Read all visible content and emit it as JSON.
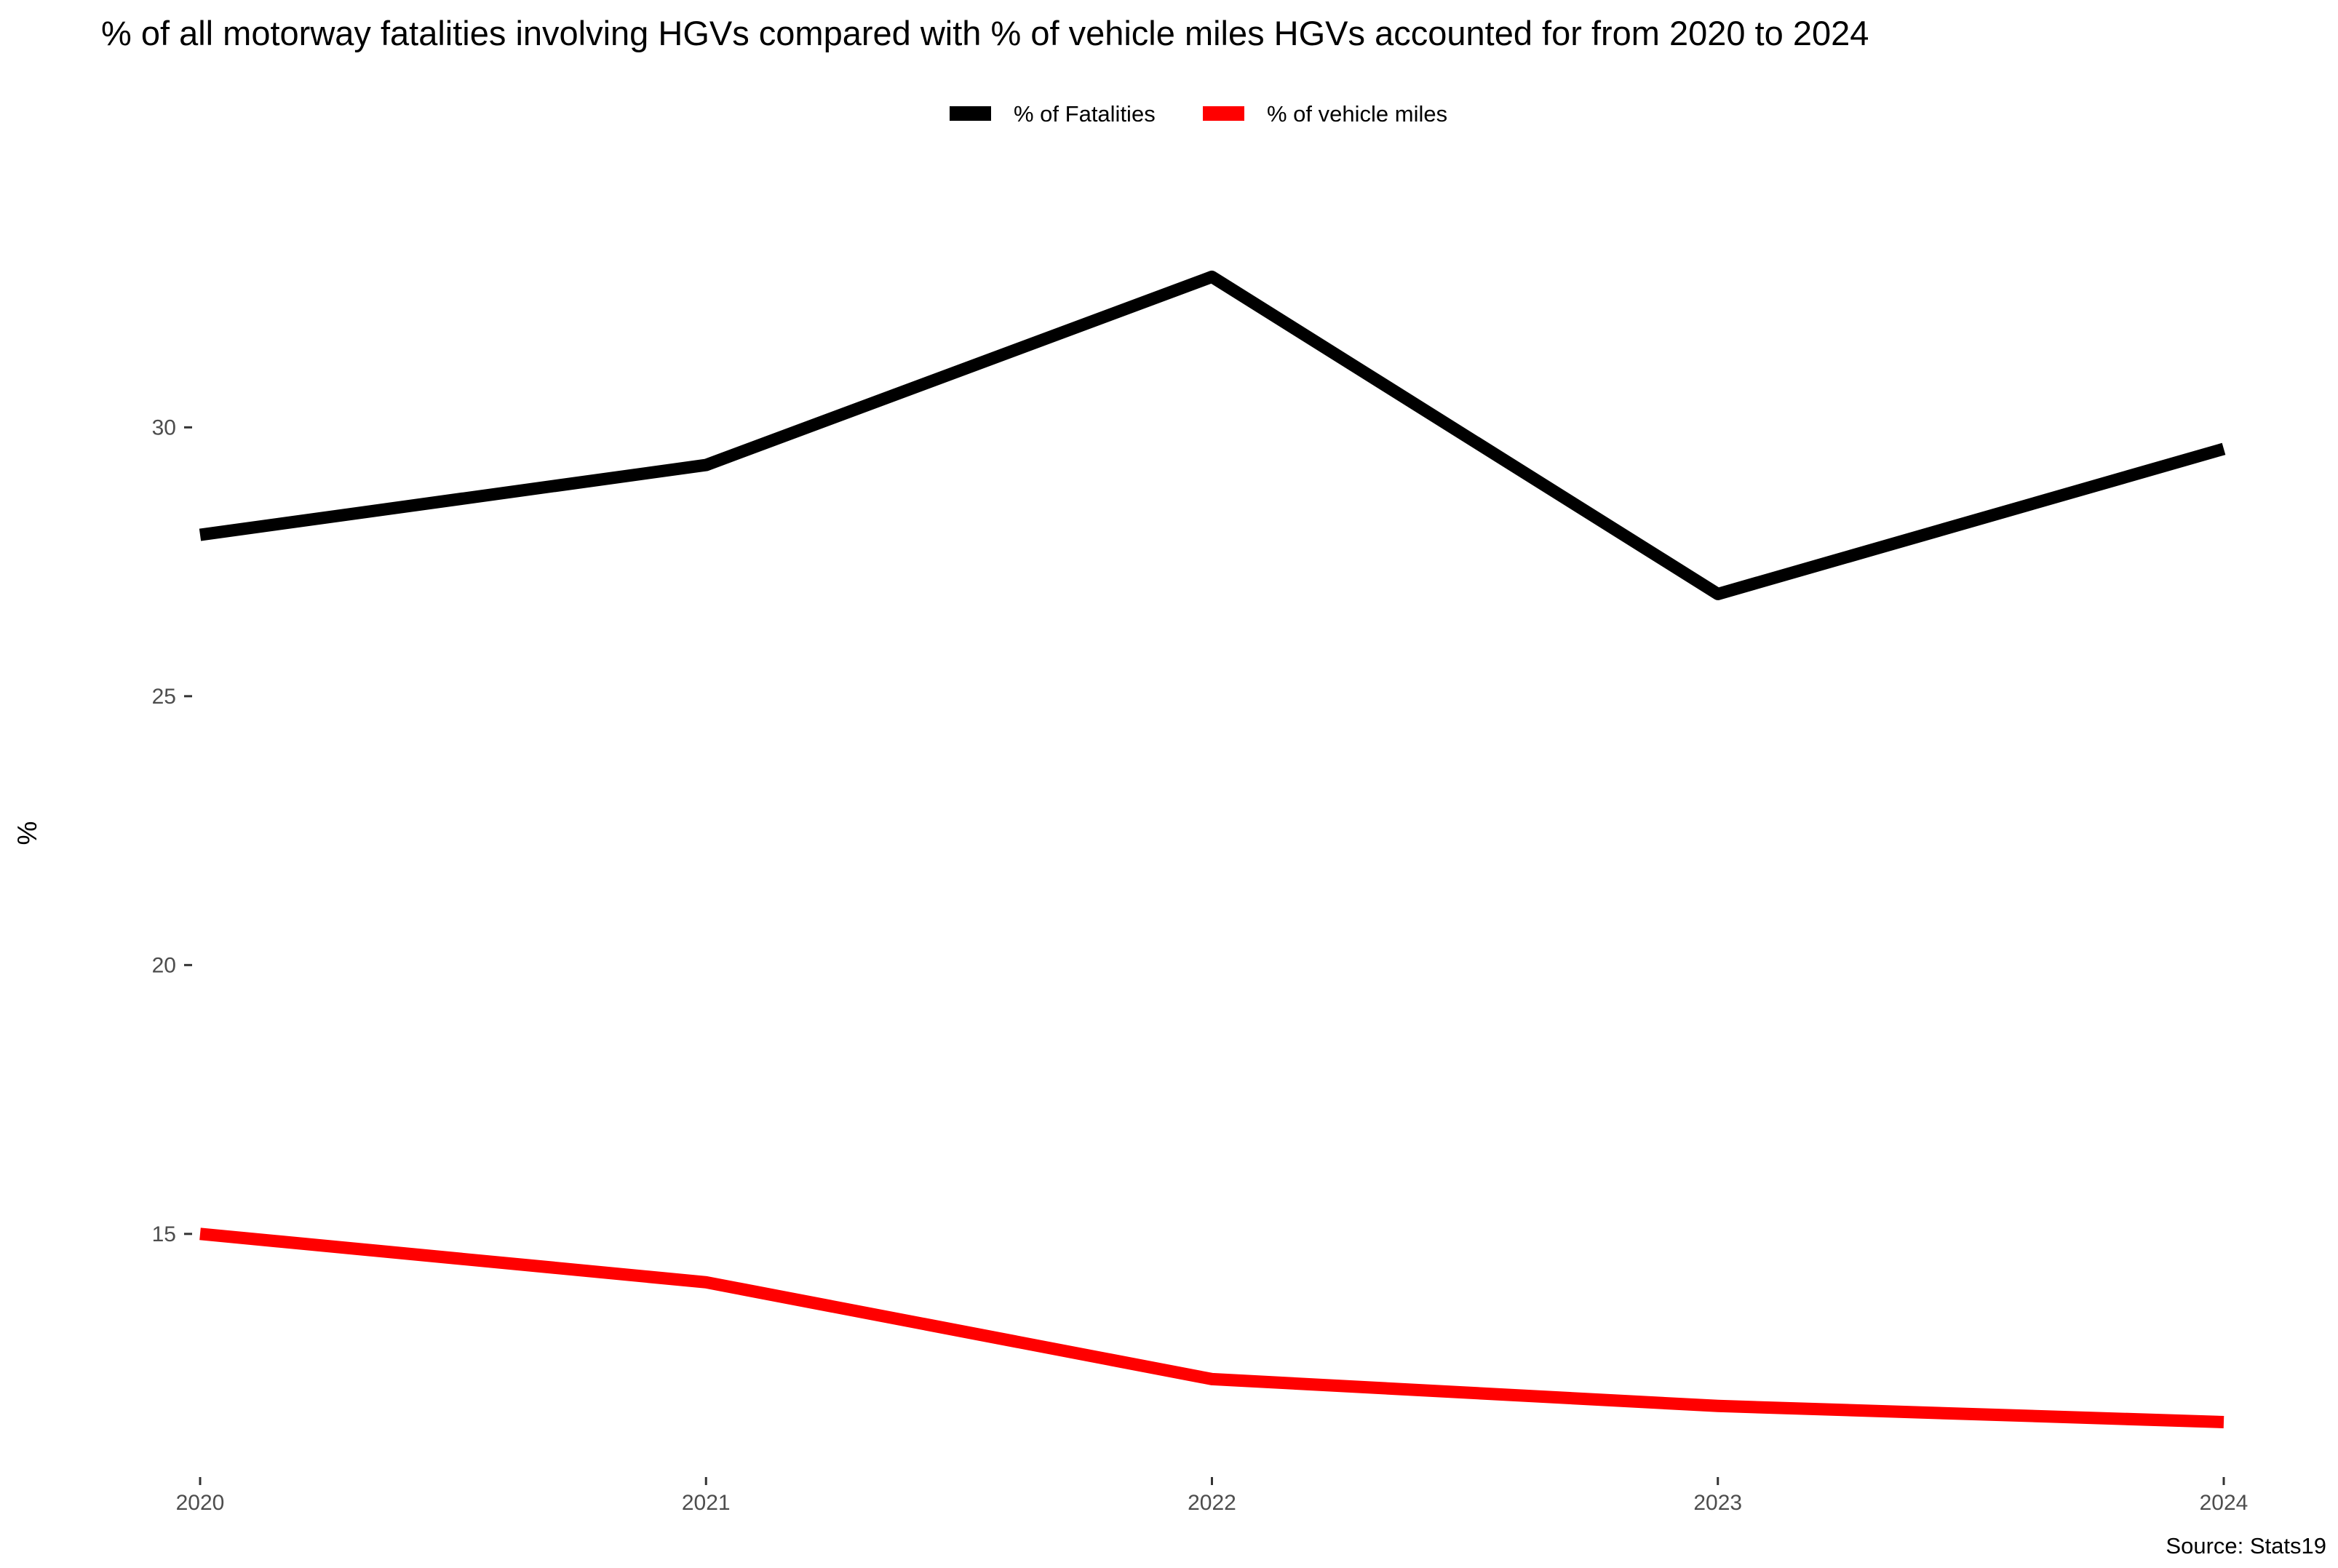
{
  "chart_data": {
    "type": "line",
    "title": "% of all motorway fatalities involving HGVs compared with % of vehicle miles HGVs accounted for from 2020 to 2024",
    "xlabel": "",
    "ylabel": "%",
    "caption": "Source: Stats19",
    "x": [
      "2020",
      "2021",
      "2022",
      "2023",
      "2024"
    ],
    "series": [
      {
        "name": "% of Fatalities",
        "color": "#000000",
        "values": [
          28.0,
          29.3,
          32.8,
          26.9,
          29.6
        ]
      },
      {
        "name": "% of vehicle miles",
        "color": "#ff0000",
        "values": [
          15.0,
          14.1,
          12.3,
          11.8,
          11.5
        ]
      }
    ],
    "yticks": [
      15,
      20,
      25,
      30
    ],
    "ylim": [
      10.6,
      34.7
    ],
    "grid": false,
    "legend": "top-center"
  }
}
